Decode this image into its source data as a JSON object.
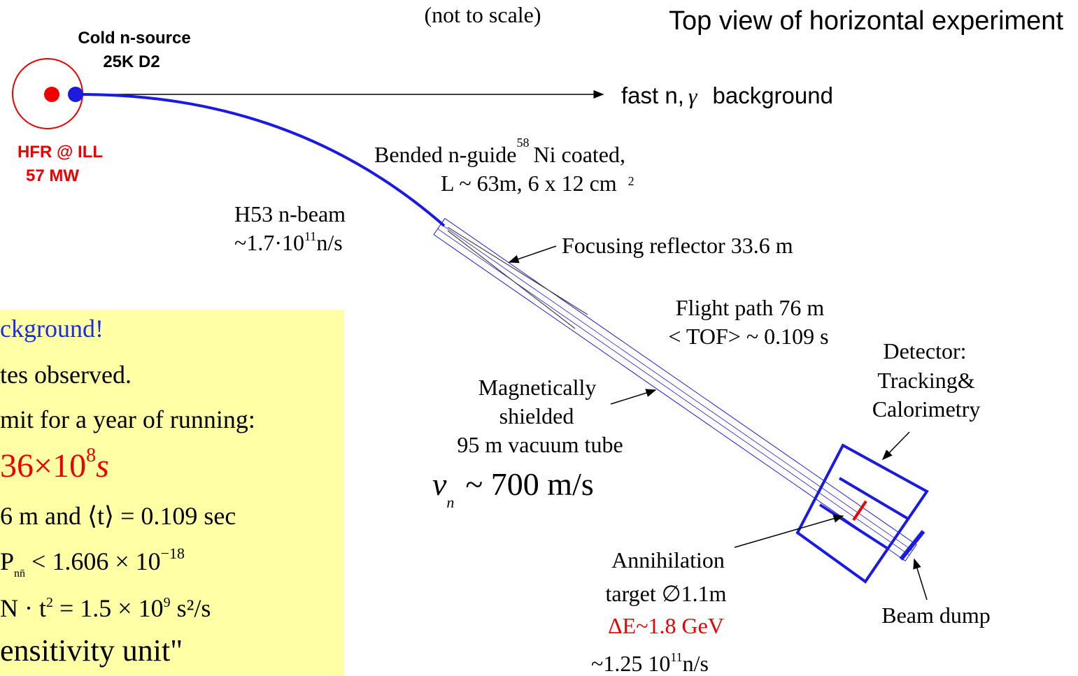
{
  "title": "Top view of horizontal experiment",
  "note": "(not to scale)",
  "source": {
    "name": "Cold n-source",
    "temp": "25K D2"
  },
  "reactor": {
    "name": "HFR @ ILL",
    "power": "57 MW"
  },
  "fast_background": {
    "particles": "fast n,",
    "gamma": "γ",
    "label": "background"
  },
  "guide": {
    "line1": "Bended n-guide",
    "isotope": "58",
    "line1_end": "Ni coated,",
    "line2": "L ~ 63m, 6 x 12 cm",
    "unit_power": "2"
  },
  "beam": {
    "name": "H53 n-beam",
    "flux": "~1.7·10",
    "exp": "11",
    "unit": "n/s"
  },
  "reflector": "Focusing reflector 33.6 m",
  "flight": {
    "line1": "Flight path 76 m",
    "line2": "< TOF> ~ 0.109 s"
  },
  "detector": {
    "line1": "Detector:",
    "line2": "Tracking&",
    "line3": "Calorimetry"
  },
  "tube": {
    "line1": "Magnetically",
    "line2": "shielded",
    "line3": "95 m vacuum tube",
    "v": "v",
    "sub": "n",
    "speed": "~ 700  m/s"
  },
  "target": {
    "line1": "Annihilation",
    "line2": "target ∅1.1m",
    "energy": "ΔE~1.8 GeV",
    "flux": "~1.25 10",
    "exp": "11",
    "unit": "n/s"
  },
  "beam_dump": "Beam dump",
  "box": {
    "l1": "ckground!",
    "l2": "tes observed.",
    "l3": "mit for a year of running:",
    "l4": "36×10",
    "l4_exp": "8",
    "l4_end": "s",
    "l5": "6 m   and   ⟨t⟩ = 0.109   sec",
    "l6": "P",
    "l6_sub": "nn̄",
    "l6_mid": " < 1.606 × 10",
    "l6_exp": "−18",
    "l7": "N · t",
    "l7_exp": "2",
    "l7_mid": " = 1.5 × 10",
    "l7_exp2": "9",
    "l7_end": "  s²/s",
    "l8": "ensitivity unit\""
  }
}
